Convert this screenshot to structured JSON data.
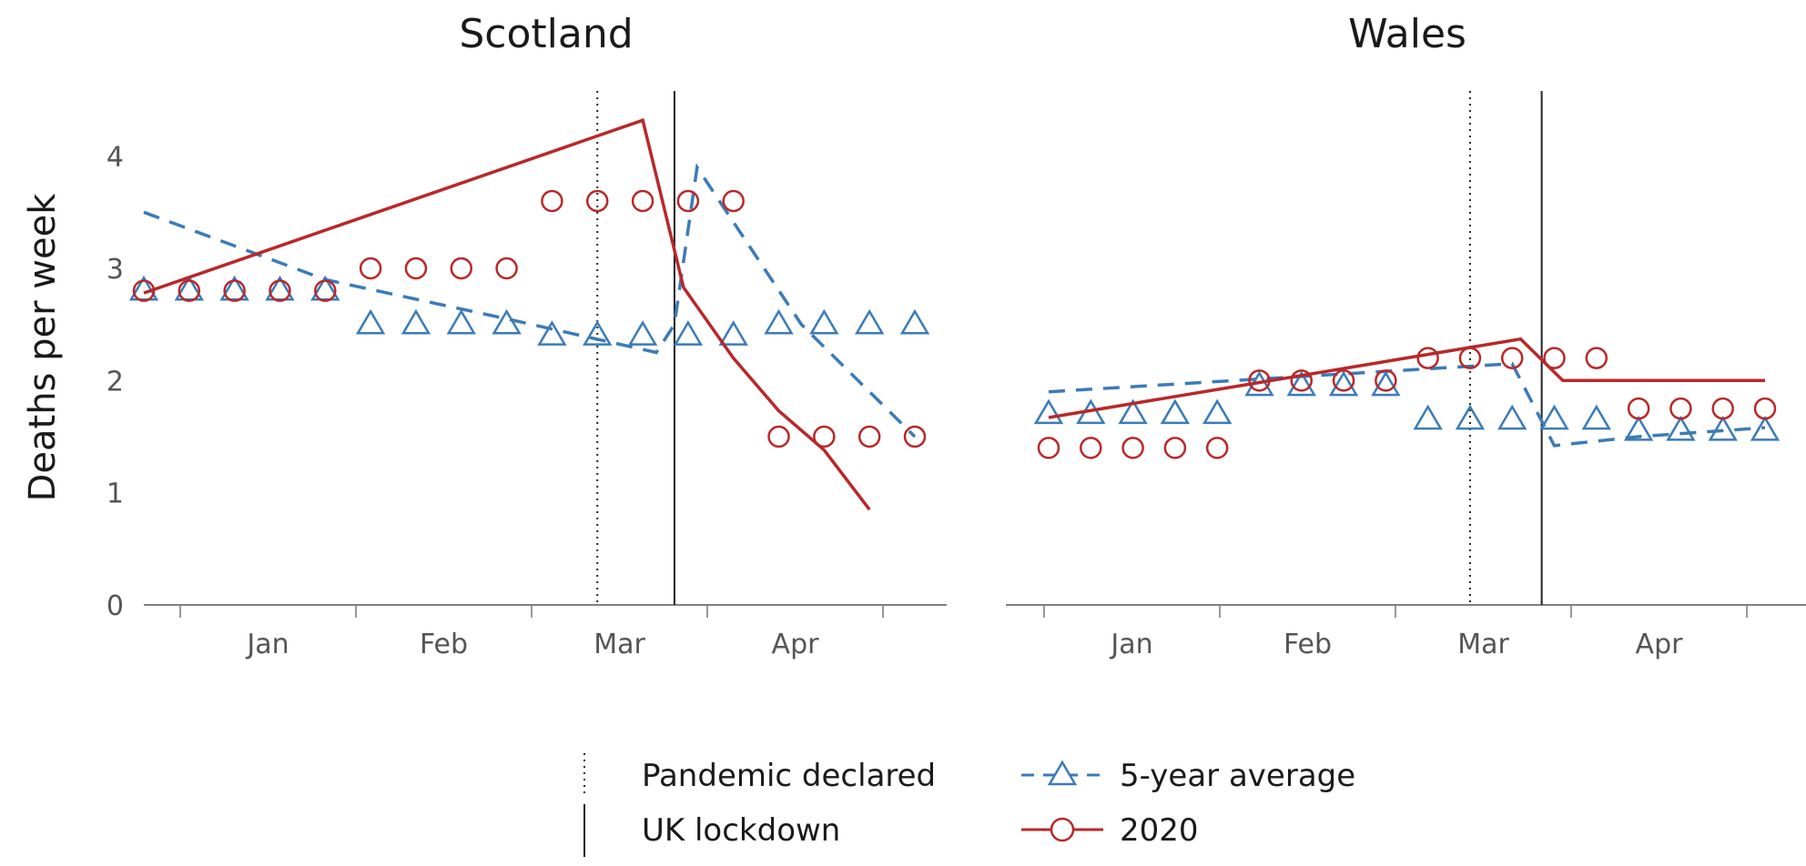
{
  "chart_data": [
    {
      "type": "line",
      "title": "Scotland",
      "ylabel": "Deaths per week",
      "xlabel": "",
      "ylim": [
        0,
        4.5
      ],
      "yticks": [
        0,
        1,
        2,
        3,
        4
      ],
      "months": [
        "Jan",
        "Feb",
        "Mar",
        "Apr"
      ],
      "x_range": [
        1,
        18
      ],
      "pandemic_declared_x": 11,
      "uk_lockdown_x": 12.7,
      "series": [
        {
          "name": "5-year average",
          "color": "#3b7bb8",
          "marker": "triangle",
          "line": "dashed",
          "points": [
            2.8,
            2.8,
            2.8,
            2.8,
            2.8,
            2.5,
            2.5,
            2.5,
            2.5,
            2.4,
            2.4,
            2.4,
            2.4,
            2.4,
            2.5,
            2.5,
            2.5,
            2.5
          ],
          "trend": [
            [
              1,
              3.5
            ],
            [
              5,
              2.9
            ],
            [
              9,
              2.55
            ],
            [
              12.3,
              2.25
            ],
            [
              12.7,
              2.5
            ],
            [
              13.2,
              3.9
            ],
            [
              15.5,
              2.5
            ],
            [
              18,
              1.5
            ]
          ]
        },
        {
          "name": "2020",
          "color": "#b8282a",
          "marker": "circle",
          "line": "solid",
          "points": [
            2.8,
            2.8,
            2.8,
            2.8,
            2.8,
            3.0,
            3.0,
            3.0,
            3.0,
            3.6,
            3.6,
            3.6,
            3.6,
            3.6,
            1.5,
            1.5,
            1.5,
            1.5
          ],
          "trend": [
            [
              1,
              2.78
            ],
            [
              12,
              4.32
            ],
            [
              12.9,
              2.83
            ],
            [
              14,
              2.2
            ],
            [
              15,
              1.73
            ],
            [
              16,
              1.38
            ],
            [
              17,
              0.85
            ]
          ]
        }
      ]
    },
    {
      "type": "line",
      "title": "Wales",
      "ylabel": "",
      "xlabel": "",
      "ylim": [
        0,
        4.5
      ],
      "months": [
        "Jan",
        "Feb",
        "Mar",
        "Apr"
      ],
      "x_range": [
        1,
        18
      ],
      "pandemic_declared_x": 11,
      "uk_lockdown_x": 12.7,
      "series": [
        {
          "name": "5-year average",
          "color": "#3b7bb8",
          "marker": "triangle",
          "line": "dashed",
          "points": [
            1.7,
            1.7,
            1.7,
            1.7,
            1.7,
            1.95,
            1.95,
            1.95,
            1.95,
            1.65,
            1.65,
            1.65,
            1.65,
            1.65,
            1.55,
            1.55,
            1.55,
            1.55
          ],
          "trend": [
            [
              1,
              1.9
            ],
            [
              12,
              2.15
            ],
            [
              13,
              1.42
            ],
            [
              15,
              1.5
            ],
            [
              18,
              1.58
            ]
          ]
        },
        {
          "name": "2020",
          "color": "#b8282a",
          "marker": "circle",
          "line": "solid",
          "points": [
            1.4,
            1.4,
            1.4,
            1.4,
            1.4,
            2.0,
            2.0,
            2.0,
            2.0,
            2.2,
            2.2,
            2.2,
            2.2,
            2.2,
            1.75,
            1.75,
            1.75,
            1.75
          ],
          "trend": [
            [
              1,
              1.67
            ],
            [
              12.2,
              2.37
            ],
            [
              13.2,
              2.0
            ],
            [
              18,
              2.0
            ]
          ]
        }
      ]
    }
  ],
  "legend": {
    "pandemic_label": "Pandemic declared",
    "lockdown_label": "UK lockdown",
    "avg_label": "5-year average",
    "y2020_label": "2020"
  }
}
